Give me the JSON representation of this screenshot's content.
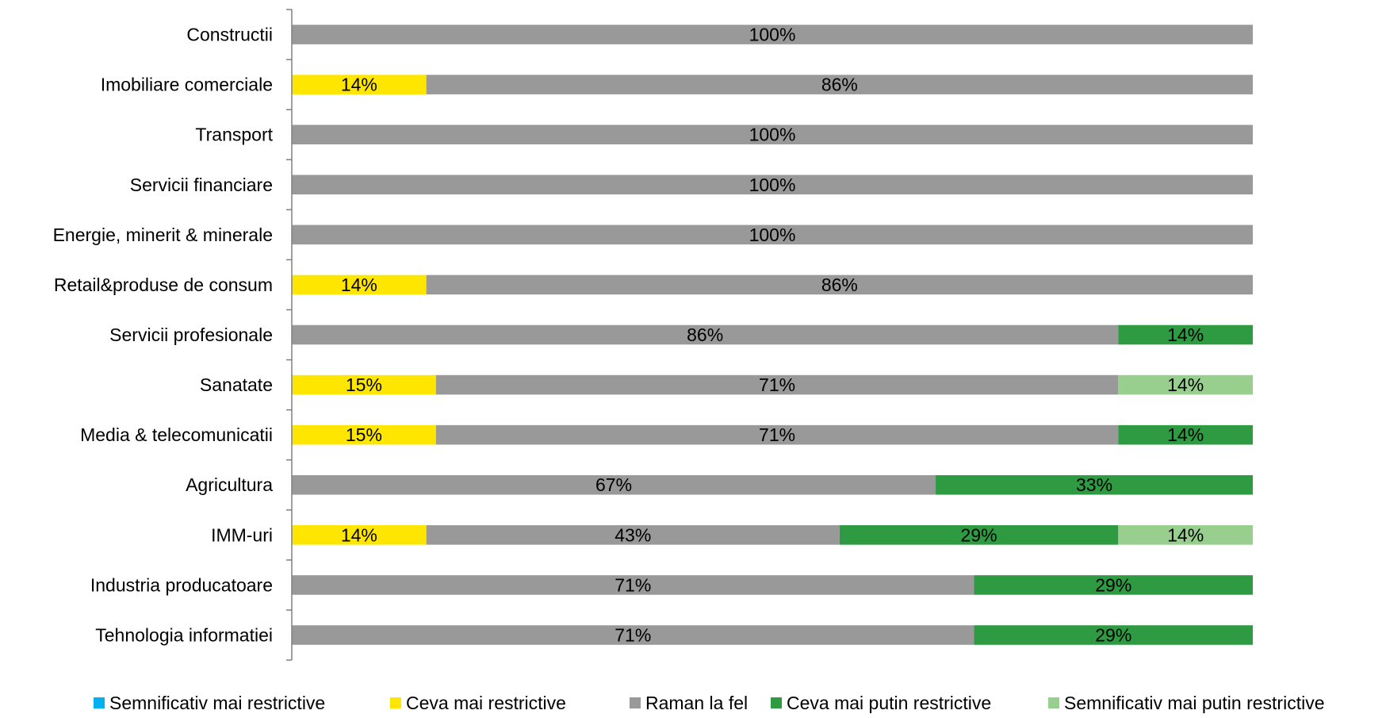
{
  "chart_data": {
    "type": "bar",
    "orientation": "horizontal",
    "stacked": true,
    "percent_stacked": true,
    "title": "",
    "xlabel": "",
    "ylabel": "",
    "categories": [
      "Constructii",
      "Imobiliare comerciale",
      "Transport",
      "Servicii financiare",
      "Energie, minerit & minerale",
      "Retail&produse de consum",
      "Servicii profesionale",
      "Sanatate",
      "Media & telecomunicatii",
      "Agricultura",
      "IMM-uri",
      "Industria producatoare",
      "Tehnologia informatiei"
    ],
    "series": [
      {
        "name": "Semnificativ mai restrictive",
        "color": "#00B0F0",
        "values": [
          0,
          0,
          0,
          0,
          0,
          0,
          0,
          0,
          0,
          0,
          0,
          0,
          0
        ]
      },
      {
        "name": "Ceva mai restrictive",
        "color": "#FFE600",
        "values": [
          0,
          14,
          0,
          0,
          0,
          14,
          0,
          15,
          15,
          0,
          14,
          0,
          0
        ]
      },
      {
        "name": "Raman la fel",
        "color": "#999999",
        "values": [
          100,
          86,
          100,
          100,
          100,
          86,
          86,
          71,
          71,
          67,
          43,
          71,
          71
        ]
      },
      {
        "name": "Ceva mai putin restrictive",
        "color": "#2E9A41",
        "values": [
          0,
          0,
          0,
          0,
          0,
          0,
          14,
          0,
          14,
          33,
          29,
          29,
          29
        ]
      },
      {
        "name": "Semnificativ mai putin restrictive",
        "color": "#98CF8F",
        "values": [
          0,
          0,
          0,
          0,
          0,
          0,
          0,
          14,
          0,
          0,
          14,
          0,
          0
        ]
      }
    ],
    "value_suffix": "%",
    "grid": false,
    "legend_position": "bottom"
  }
}
